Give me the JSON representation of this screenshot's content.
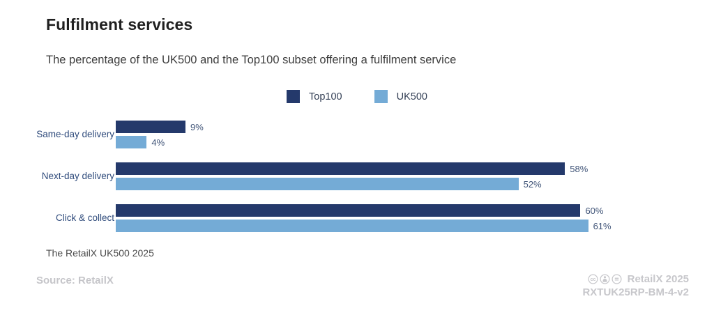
{
  "header": {
    "title": "Fulfilment services",
    "subtitle": "The percentage of the UK500 and the Top100 subset offering a fulfilment service"
  },
  "chart_data": {
    "type": "bar",
    "orientation": "horizontal",
    "title": "Fulfilment services",
    "subtitle": "The percentage of the UK500 and the Top100 subset offering a fulfilment service",
    "categories": [
      "Same-day delivery",
      "Next-day delivery",
      "Click & collect"
    ],
    "series": [
      {
        "name": "Top100",
        "color": "#24396b",
        "values": [
          9,
          58,
          60
        ]
      },
      {
        "name": "UK500",
        "color": "#74abd6",
        "values": [
          4,
          52,
          61
        ]
      }
    ],
    "value_suffix": "%",
    "xlim": [
      0,
      65
    ],
    "grid": false,
    "legend_position": "top-center"
  },
  "footer": {
    "note": "The RetailX UK500 2025",
    "source": "Source: RetailX",
    "license_icons": [
      "cc-icon",
      "by-icon",
      "nd-icon"
    ],
    "brand": "RetailX 2025",
    "reference": "RXTUK25RP-BM-4-v2"
  },
  "colors": {
    "top100": "#24396b",
    "uk500": "#74abd6",
    "category_label": "#2e4a7b",
    "value_label": "#3f5377",
    "muted_gray": "#c5c5c9",
    "background": "#ffffff"
  }
}
